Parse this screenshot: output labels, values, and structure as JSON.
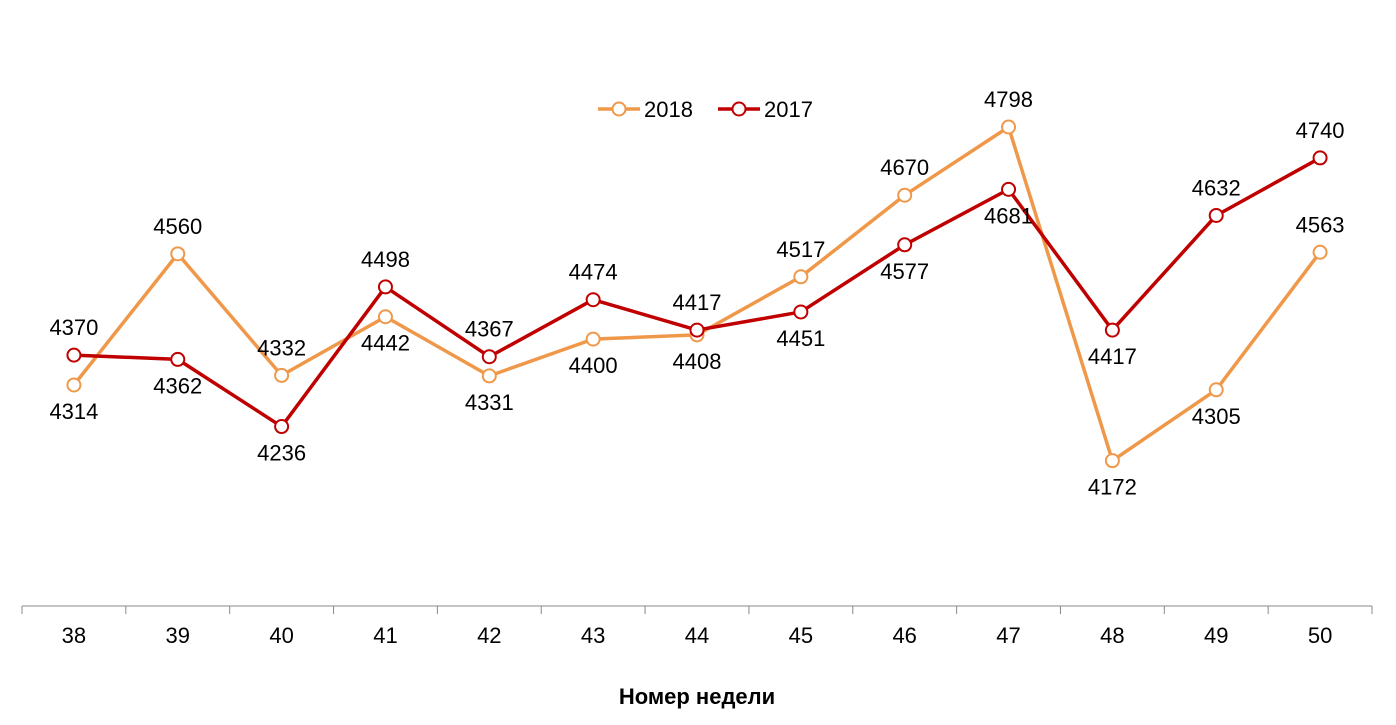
{
  "chart_data": {
    "type": "line",
    "title": "",
    "xlabel": "Номер недели",
    "ylabel": "",
    "categories": [
      "38",
      "39",
      "40",
      "41",
      "42",
      "43",
      "44",
      "45",
      "46",
      "47",
      "48",
      "49",
      "50"
    ],
    "series": [
      {
        "name": "2018",
        "color": "#F0984A",
        "values": [
          4314,
          4560,
          4332,
          4442,
          4331,
          4400,
          4408,
          4517,
          4670,
          4798,
          4172,
          4305,
          4563
        ],
        "label_pos": [
          "below",
          "above",
          "above",
          "below",
          "below",
          "below",
          "below",
          "above",
          "above",
          "above",
          "below",
          "below",
          "above"
        ]
      },
      {
        "name": "2017",
        "color": "#C00000",
        "values": [
          4370,
          4362,
          4236,
          4498,
          4367,
          4474,
          4417,
          4451,
          4577,
          4681,
          4417,
          4632,
          4740
        ],
        "label_pos": [
          "above",
          "below",
          "below",
          "above",
          "above",
          "above",
          "above",
          "below",
          "below",
          "below",
          "below",
          "above",
          "above"
        ]
      }
    ],
    "ylim": [
      3900,
      5050
    ],
    "grid": false,
    "legend_position": "top-center"
  }
}
